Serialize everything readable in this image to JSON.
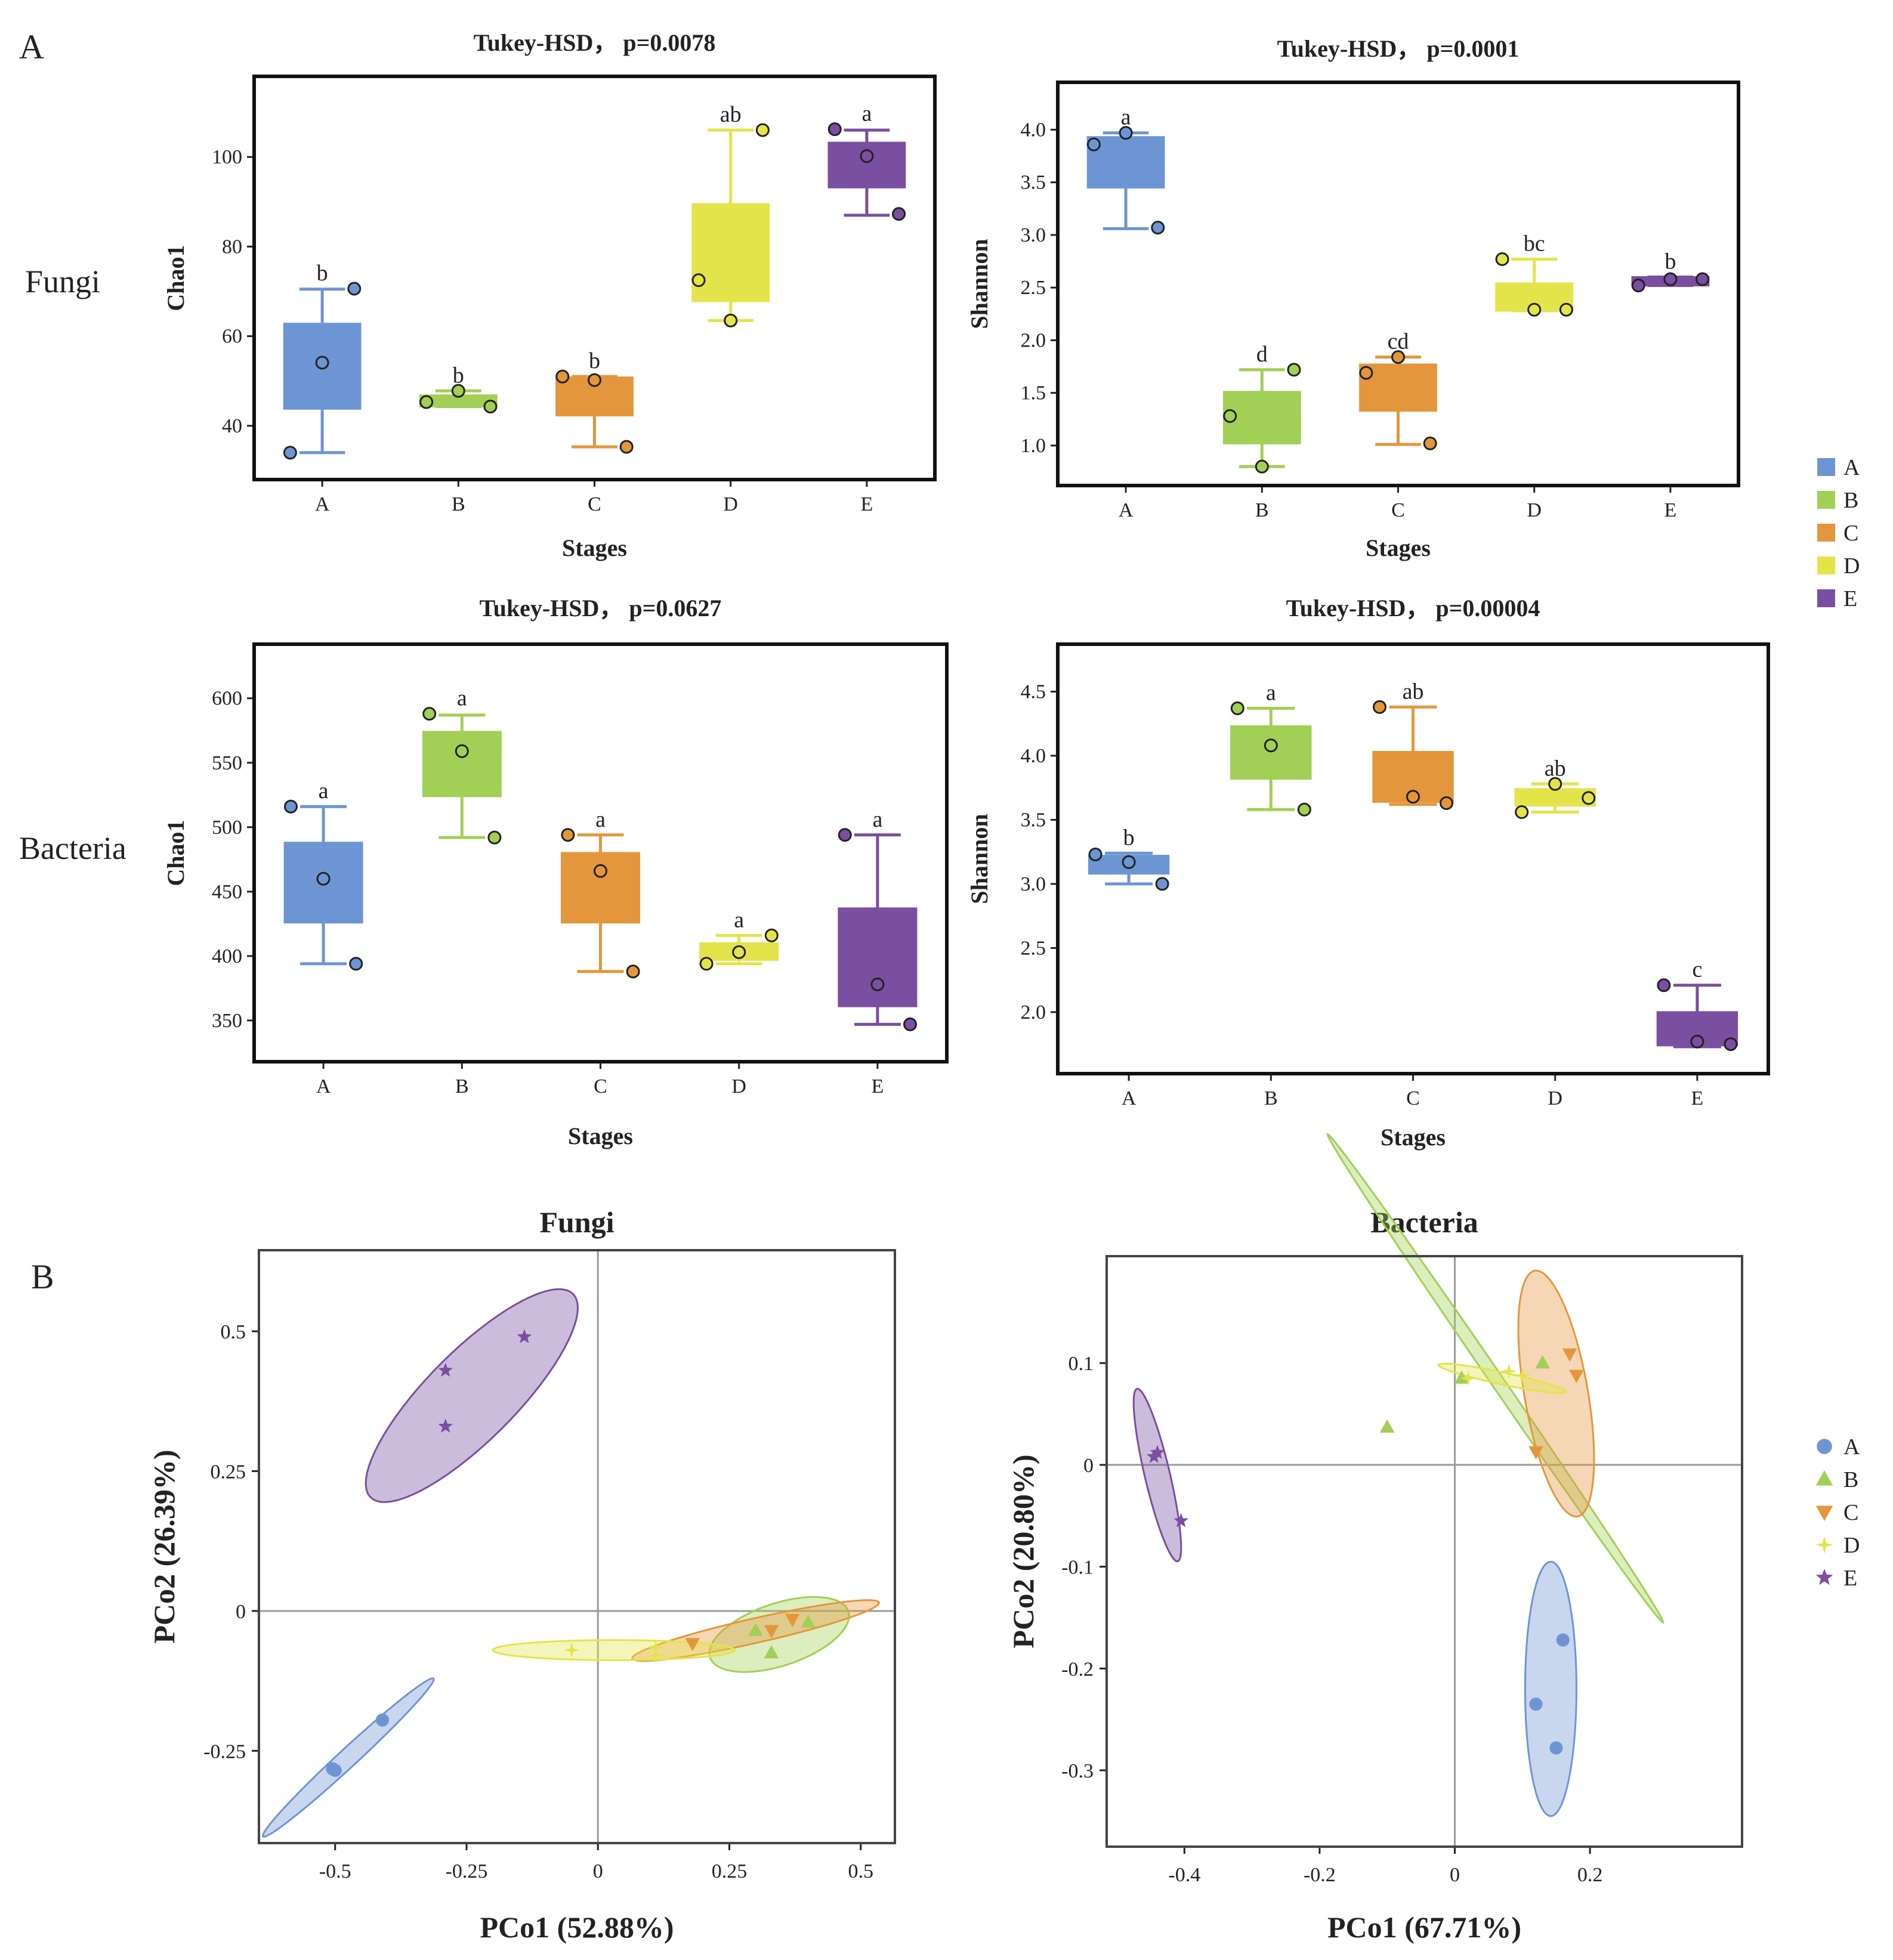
{
  "panels": {
    "a": "A",
    "b": "B"
  },
  "row_labels": {
    "fungi": "Fungi",
    "bacteria": "Bacteria"
  },
  "colors": {
    "A": "#6e95d3",
    "B": "#a2cf55",
    "C": "#e4963c",
    "D": "#e3e44a",
    "E": "#7a4ea0"
  },
  "box_legend": {
    "items": [
      "A",
      "B",
      "C",
      "D",
      "E"
    ]
  },
  "pcoa_legend": {
    "items": [
      "A",
      "B",
      "C",
      "D",
      "E"
    ],
    "markers": [
      "circle",
      "triangle-up",
      "triangle-down",
      "four-point-star",
      "star"
    ]
  },
  "chart_data": [
    {
      "id": "fungi-chao1",
      "type": "box",
      "title": "Tukey-HSD， p=0.0078",
      "xlabel": "Stages",
      "ylabel": "Chao1",
      "categories": [
        "A",
        "B",
        "C",
        "D",
        "E"
      ],
      "ylim": [
        28,
        118
      ],
      "yticks": [
        40,
        60,
        80,
        100
      ],
      "boxes": [
        {
          "q1": 43.8,
          "median": 53.5,
          "q3": 62.8,
          "wlo": 34,
          "whi": 70.5,
          "points": [
            34,
            54.1,
            70.6
          ],
          "letter": "b"
        },
        {
          "q1": 44.3,
          "median": 45.5,
          "q3": 46.8,
          "wlo": 44.3,
          "whi": 47.8,
          "points": [
            45.3,
            47.8,
            44.3
          ],
          "letter": "b"
        },
        {
          "q1": 42.3,
          "median": 47.5,
          "q3": 50.8,
          "wlo": 35.3,
          "whi": 51,
          "points": [
            51,
            50.2,
            35.3
          ],
          "letter": "b"
        },
        {
          "q1": 67.8,
          "median": 80,
          "q3": 89.5,
          "wlo": 63.5,
          "whi": 106,
          "points": [
            72.5,
            63.5,
            106
          ],
          "letter": "ab"
        },
        {
          "q1": 93.2,
          "median": 100,
          "q3": 103.2,
          "wlo": 87,
          "whi": 106,
          "points": [
            106.2,
            100.2,
            87.3
          ],
          "letter": "a"
        }
      ]
    },
    {
      "id": "fungi-shannon",
      "type": "box",
      "title": "Tukey-HSD， p=0.0001",
      "xlabel": "Stages",
      "ylabel": "Shannon",
      "categories": [
        "A",
        "B",
        "C",
        "D",
        "E"
      ],
      "ylim": [
        0.62,
        4.45
      ],
      "yticks": [
        1.0,
        1.5,
        2.0,
        2.5,
        3.0,
        3.5,
        4.0
      ],
      "boxes": [
        {
          "q1": 3.45,
          "median": 3.7,
          "q3": 3.93,
          "wlo": 3.06,
          "whi": 3.97,
          "points": [
            3.86,
            3.97,
            3.07
          ],
          "letter": "a"
        },
        {
          "q1": 1.02,
          "median": 1.25,
          "q3": 1.51,
          "wlo": 0.8,
          "whi": 1.72,
          "points": [
            1.28,
            0.8,
            1.72
          ],
          "letter": "d"
        },
        {
          "q1": 1.33,
          "median": 1.55,
          "q3": 1.77,
          "wlo": 1.01,
          "whi": 1.84,
          "points": [
            1.69,
            1.84,
            1.02
          ],
          "letter": "cd"
        },
        {
          "q1": 2.28,
          "median": 2.4,
          "q3": 2.54,
          "wlo": 2.28,
          "whi": 2.77,
          "points": [
            2.77,
            2.29,
            2.29
          ],
          "letter": "bc"
        },
        {
          "q1": 2.52,
          "median": 2.56,
          "q3": 2.6,
          "wlo": 2.52,
          "whi": 2.6,
          "points": [
            2.52,
            2.58,
            2.58
          ],
          "letter": "b"
        }
      ]
    },
    {
      "id": "bacteria-chao1",
      "type": "box",
      "title": "Tukey-HSD， p=0.0627",
      "xlabel": "Stages",
      "ylabel": "Chao1",
      "categories": [
        "A",
        "B",
        "C",
        "D",
        "E"
      ],
      "ylim": [
        318,
        642
      ],
      "yticks": [
        350,
        400,
        450,
        500,
        550,
        600
      ],
      "boxes": [
        {
          "q1": 426,
          "median": 460,
          "q3": 488,
          "wlo": 394,
          "whi": 516,
          "points": [
            516,
            460,
            394
          ],
          "letter": "a"
        },
        {
          "q1": 524,
          "median": 555,
          "q3": 574,
          "wlo": 492,
          "whi": 587,
          "points": [
            588,
            559,
            492
          ],
          "letter": "a"
        },
        {
          "q1": 426,
          "median": 455,
          "q3": 480,
          "wlo": 388,
          "whi": 494,
          "points": [
            494,
            466,
            388
          ],
          "letter": "a"
        },
        {
          "q1": 397,
          "median": 403,
          "q3": 410,
          "wlo": 394,
          "whi": 416,
          "points": [
            394,
            403,
            416
          ],
          "letter": "a"
        },
        {
          "q1": 361,
          "median": 378,
          "q3": 437,
          "wlo": 347,
          "whi": 494,
          "points": [
            494,
            378,
            347
          ],
          "letter": "a"
        }
      ]
    },
    {
      "id": "bacteria-shannon",
      "type": "box",
      "title": "Tukey-HSD， p=0.00004",
      "xlabel": "Stages",
      "ylabel": "Shannon",
      "categories": [
        "A",
        "B",
        "C",
        "D",
        "E"
      ],
      "ylim": [
        1.52,
        4.87
      ],
      "yticks": [
        2.0,
        2.5,
        3.0,
        3.5,
        4.0,
        4.5
      ],
      "boxes": [
        {
          "q1": 3.08,
          "median": 3.16,
          "q3": 3.22,
          "wlo": 3.0,
          "whi": 3.24,
          "points": [
            3.23,
            3.17,
            3.0
          ],
          "letter": "b"
        },
        {
          "q1": 3.82,
          "median": 4.05,
          "q3": 4.23,
          "wlo": 3.58,
          "whi": 4.37,
          "points": [
            4.37,
            4.08,
            3.58
          ],
          "letter": "a"
        },
        {
          "q1": 3.64,
          "median": 3.67,
          "q3": 4.03,
          "wlo": 3.62,
          "whi": 4.38,
          "points": [
            4.38,
            3.68,
            3.63
          ],
          "letter": "ab"
        },
        {
          "q1": 3.61,
          "median": 3.68,
          "q3": 3.74,
          "wlo": 3.56,
          "whi": 3.78,
          "points": [
            3.56,
            3.78,
            3.67
          ],
          "letter": "ab"
        },
        {
          "q1": 1.74,
          "median": 1.8,
          "q3": 2.0,
          "wlo": 1.73,
          "whi": 2.21,
          "points": [
            2.21,
            1.77,
            1.75
          ],
          "letter": "c"
        }
      ]
    },
    {
      "id": "fungi-pcoa",
      "type": "scatter",
      "title": "Fungi",
      "xlabel": "PCo1 (52.88%)",
      "ylabel": "PCo2 (26.39%)",
      "xlim": [
        -0.645,
        0.565
      ],
      "ylim": [
        -0.415,
        0.645
      ],
      "xticks": [
        -0.5,
        -0.25,
        0,
        0.25,
        0.5
      ],
      "xtick_labels": [
        "-0.5",
        "-0.25",
        "0",
        "0.25",
        "0.5"
      ],
      "yticks": [
        -0.25,
        0,
        0.25,
        0.5
      ],
      "ytick_labels": [
        "-0.25",
        "0",
        "0.25",
        "0.5"
      ],
      "series": [
        {
          "name": "A",
          "points": [
            [
              -0.41,
              -0.195
            ],
            [
              -0.505,
              -0.282
            ],
            [
              -0.5,
              -0.285
            ]
          ],
          "ellipse": {
            "cx": -0.475,
            "cy": -0.262,
            "rx": 0.215,
            "ry": 0.017,
            "angle_deg": 41
          }
        },
        {
          "name": "B",
          "points": [
            [
              0.3,
              -0.035
            ],
            [
              0.33,
              -0.075
            ],
            [
              0.4,
              -0.02
            ]
          ],
          "ellipse": {
            "cx": 0.345,
            "cy": -0.042,
            "rx": 0.138,
            "ry": 0.056,
            "angle_deg": 17
          }
        },
        {
          "name": "C",
          "points": [
            [
              0.18,
              -0.058
            ],
            [
              0.33,
              -0.035
            ],
            [
              0.37,
              -0.015
            ]
          ],
          "ellipse": {
            "cx": 0.3,
            "cy": -0.035,
            "rx": 0.24,
            "ry": 0.022,
            "angle_deg": 12
          }
        },
        {
          "name": "D",
          "points": [
            [
              -0.05,
              -0.07
            ],
            [
              0.11,
              -0.065
            ],
            [
              0.11,
              -0.08
            ]
          ],
          "ellipse": {
            "cx": 0.03,
            "cy": -0.07,
            "rx": 0.23,
            "ry": 0.018,
            "angle_deg": 0
          }
        },
        {
          "name": "E",
          "points": [
            [
              -0.14,
              0.49
            ],
            [
              -0.29,
              0.43
            ],
            [
              -0.29,
              0.33
            ]
          ],
          "ellipse": {
            "cx": -0.24,
            "cy": 0.385,
            "rx": 0.265,
            "ry": 0.082,
            "angle_deg": 43
          }
        }
      ]
    },
    {
      "id": "bacteria-pcoa",
      "type": "scatter",
      "title": "Bacteria",
      "xlabel": "PCo1 (67.71%)",
      "ylabel": "PCo2 (20.80%)",
      "xlim": [
        -0.515,
        0.425
      ],
      "ylim": [
        -0.375,
        0.205
      ],
      "xticks": [
        -0.4,
        -0.2,
        0,
        0.2
      ],
      "xtick_labels": [
        "-0.4",
        "-0.2",
        "0",
        "0.2"
      ],
      "yticks": [
        -0.3,
        -0.2,
        -0.1,
        0,
        0.1
      ],
      "ytick_labels": [
        "-0.3",
        "-0.2",
        "-0.1",
        "0",
        "0.1"
      ],
      "series": [
        {
          "name": "A",
          "points": [
            [
              0.16,
              -0.172
            ],
            [
              0.12,
              -0.235
            ],
            [
              0.15,
              -0.278
            ]
          ],
          "ellipse": {
            "cx": 0.142,
            "cy": -0.22,
            "rx": 0.038,
            "ry": 0.125,
            "angle_deg": 0
          }
        },
        {
          "name": "B",
          "points": [
            [
              -0.1,
              0.037
            ],
            [
              0.13,
              0.1
            ],
            [
              0.01,
              0.085
            ]
          ],
          "ellipse": {
            "cx": 0.06,
            "cy": 0.085,
            "rx": 0.345,
            "ry": 0.008,
            "angle_deg": -44
          }
        },
        {
          "name": "C",
          "points": [
            [
              0.12,
              0.013
            ],
            [
              0.17,
              0.109
            ],
            [
              0.18,
              0.088
            ]
          ],
          "ellipse": {
            "cx": 0.15,
            "cy": 0.07,
            "rx": 0.046,
            "ry": 0.125,
            "angle_deg": 16
          }
        },
        {
          "name": "D",
          "points": [
            [
              0.02,
              0.085
            ],
            [
              0.08,
              0.092
            ],
            [
              0.1,
              0.088
            ]
          ],
          "ellipse": {
            "cx": 0.07,
            "cy": 0.085,
            "rx": 0.095,
            "ry": 0.006,
            "angle_deg": -8
          }
        },
        {
          "name": "E",
          "points": [
            [
              -0.44,
              0.012
            ],
            [
              -0.405,
              -0.055
            ],
            [
              -0.445,
              0.008
            ]
          ],
          "ellipse": {
            "cx": -0.44,
            "cy": -0.01,
            "rx": 0.018,
            "ry": 0.09,
            "angle_deg": 20
          }
        }
      ]
    }
  ]
}
